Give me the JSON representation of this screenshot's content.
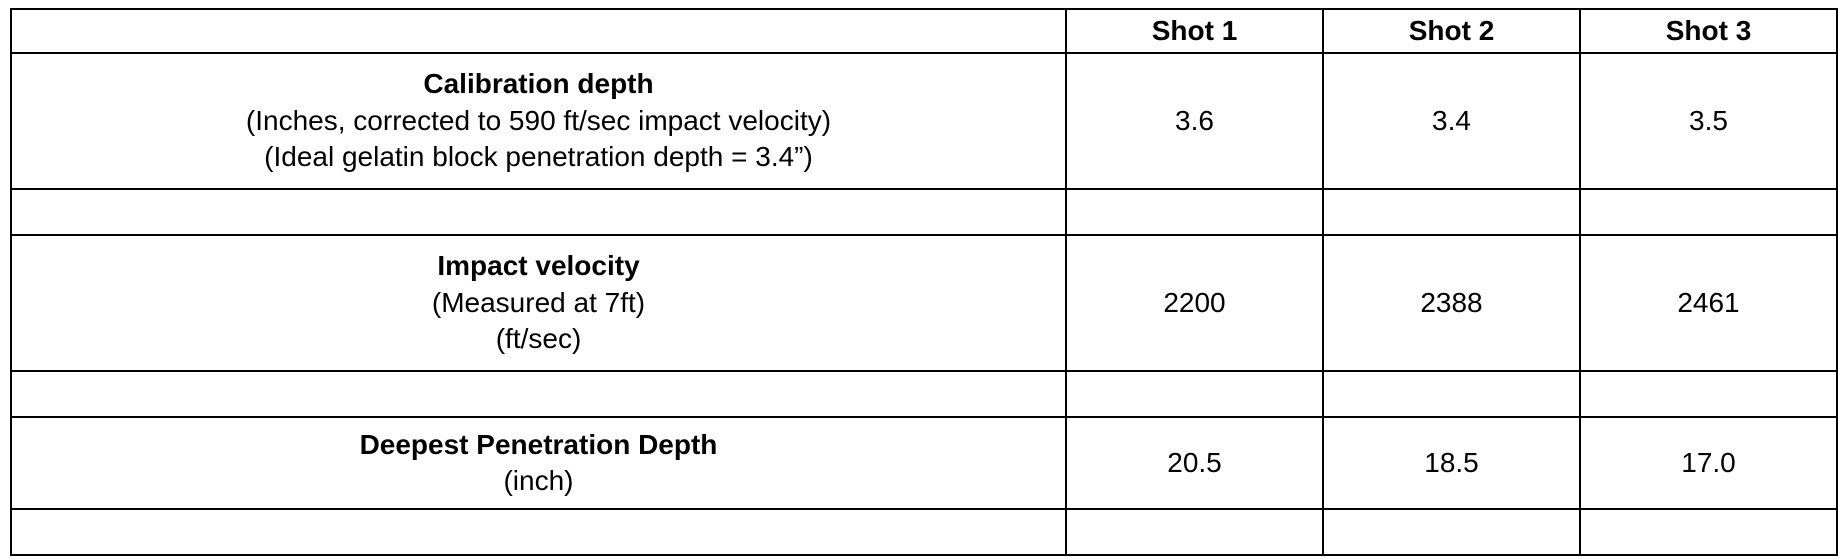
{
  "headers": [
    "",
    "Shot 1",
    "Shot 2",
    "Shot 3"
  ],
  "rows": [
    {
      "title": "Calibration depth",
      "subtitles": [
        "(Inches, corrected to 590 ft/sec impact velocity)",
        "(Ideal gelatin block penetration depth = 3.4”)"
      ],
      "values": [
        "3.6",
        "3.4",
        "3.5"
      ]
    },
    {
      "title": "Impact velocity",
      "subtitles": [
        "(Measured at 7ft)",
        "(ft/sec)"
      ],
      "values": [
        "2200",
        "2388",
        "2461"
      ]
    },
    {
      "title": "Deepest Penetration Depth",
      "subtitles": [
        "(inch)"
      ],
      "values": [
        "20.5",
        "18.5",
        "17.0"
      ]
    }
  ]
}
